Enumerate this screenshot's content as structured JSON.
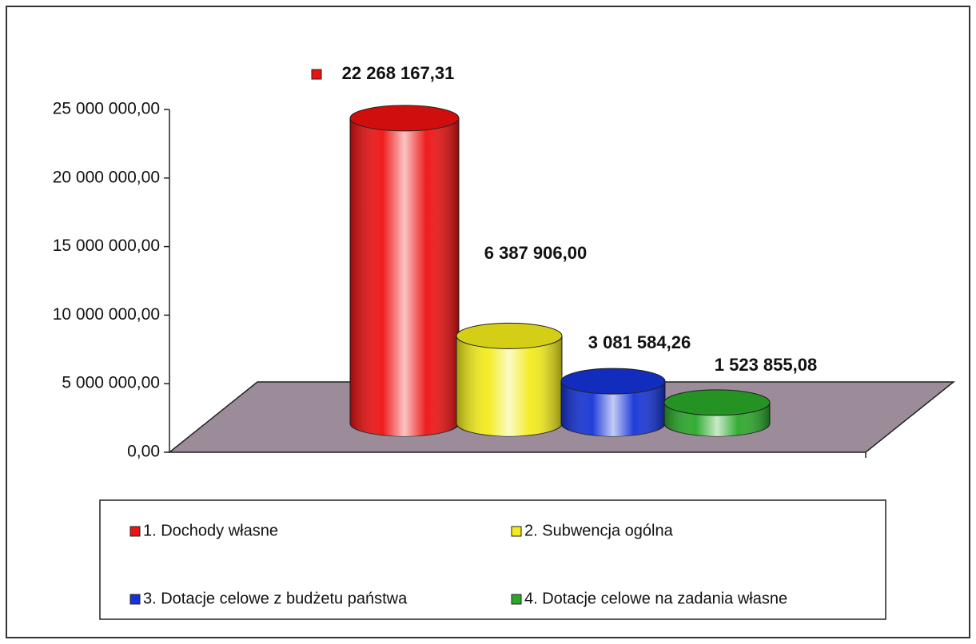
{
  "chart_data": {
    "type": "bar3d",
    "categories": [
      "1. Dochody własne",
      "2. Subwencja ogólna",
      "3. Dotacje celowe z budżetu państwa",
      "4. Dotacje celowe na zadania własne"
    ],
    "values": [
      22268167.31,
      6387906.0,
      3081584.26,
      1523855.08
    ],
    "value_labels": [
      "22 268 167,31",
      "6 387 906,00",
      "3 081 584,26",
      "1 523 855,08"
    ],
    "colors": [
      "#ee1111",
      "#f2ec1a",
      "#1533d8",
      "#2aa82a"
    ],
    "ylim": [
      0,
      25000000
    ],
    "yticks": [
      {
        "value": 0,
        "label": "0,00"
      },
      {
        "value": 5000000,
        "label": "5 000 000,00"
      },
      {
        "value": 10000000,
        "label": "10 000 000,00"
      },
      {
        "value": 15000000,
        "label": "15 000 000,00"
      },
      {
        "value": 20000000,
        "label": "20 000 000,00"
      },
      {
        "value": 25000000,
        "label": "25 000 000,00"
      }
    ],
    "legend": "bottom"
  }
}
